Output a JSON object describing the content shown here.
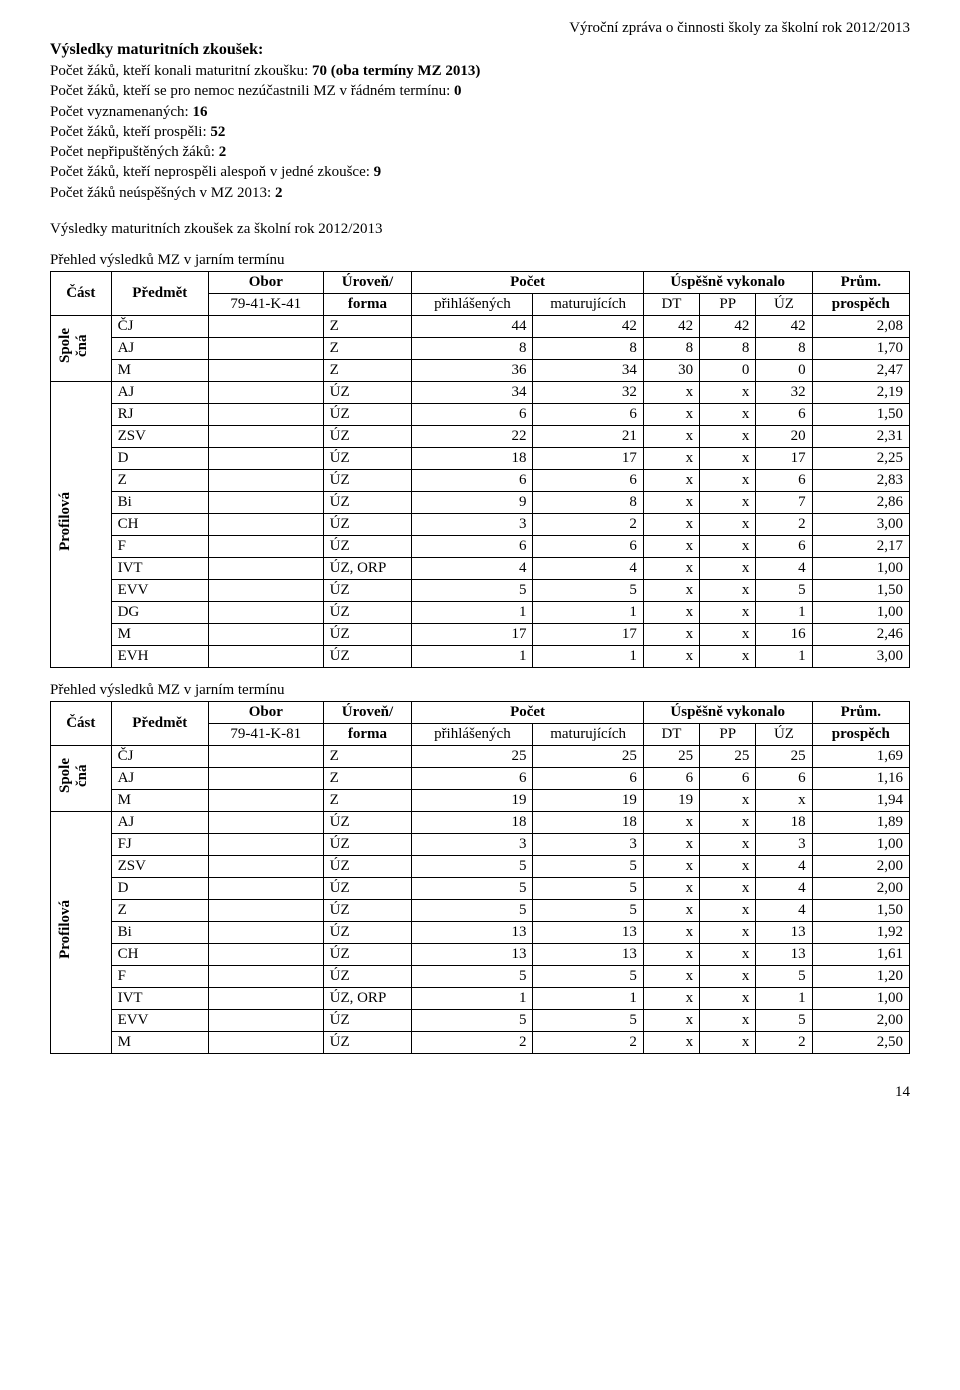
{
  "header_right": "Výroční zpráva o činnosti školy za školní rok 2012/2013",
  "section_title": "Výsledky maturitních zkoušek:",
  "stats": [
    {
      "label": "Počet žáků, kteří konali maturitní zkoušku: ",
      "value": "70 (oba termíny MZ 2013)"
    },
    {
      "label": "Počet žáků, kteří se pro nemoc nezúčastnili MZ v řádném termínu: ",
      "value": "0"
    },
    {
      "label": "Počet vyznamenaných: ",
      "value": "16"
    },
    {
      "label": "Počet žáků, kteří prospěli: ",
      "value": "52"
    },
    {
      "label": "Počet nepřipuštěných žáků: ",
      "value": "2"
    },
    {
      "label": "Počet žáků, kteří neprospěli alespoň v jedné zkoušce: ",
      "value": "9"
    },
    {
      "label": "Počet žáků neúspěšných v MZ 2013: ",
      "value": "2"
    }
  ],
  "sub_title": "Výsledky maturitních zkoušek za školní rok 2012/2013",
  "headers": {
    "cast": "Část",
    "predmet": "Předmět",
    "obor": "Obor",
    "forma": "Úroveň/\nforma",
    "pocet": "Počet",
    "prihlasenych": "přihlášených",
    "maturujicich": "maturujících",
    "uspesne": "Úspěšně vykonalo",
    "dt": "DT",
    "pp": "PP",
    "uz": "ÚZ",
    "prum": "Prům.",
    "prospech": "prospěch"
  },
  "table1": {
    "caption": "Přehled výsledků MZ v jarním termínu",
    "obor": "79-41-K-41",
    "groups": [
      {
        "label": "Spole\nčná",
        "rows": [
          {
            "pred": "ČJ",
            "forma": "Z",
            "prih": "44",
            "mat": "42",
            "dt": "42",
            "pp": "42",
            "uz": "42",
            "pr": "2,08"
          },
          {
            "pred": "AJ",
            "forma": "Z",
            "prih": "8",
            "mat": "8",
            "dt": "8",
            "pp": "8",
            "uz": "8",
            "pr": "1,70"
          },
          {
            "pred": "M",
            "forma": "Z",
            "prih": "36",
            "mat": "34",
            "dt": "30",
            "pp": "0",
            "uz": "0",
            "pr": "2,47"
          }
        ]
      },
      {
        "label": "Profilová",
        "rows": [
          {
            "pred": "AJ",
            "forma": "ÚZ",
            "prih": "34",
            "mat": "32",
            "dt": "x",
            "pp": "x",
            "uz": "32",
            "pr": "2,19"
          },
          {
            "pred": "RJ",
            "forma": "ÚZ",
            "prih": "6",
            "mat": "6",
            "dt": "x",
            "pp": "x",
            "uz": "6",
            "pr": "1,50"
          },
          {
            "pred": "ZSV",
            "forma": "ÚZ",
            "prih": "22",
            "mat": "21",
            "dt": "x",
            "pp": "x",
            "uz": "20",
            "pr": "2,31"
          },
          {
            "pred": "D",
            "forma": "ÚZ",
            "prih": "18",
            "mat": "17",
            "dt": "x",
            "pp": "x",
            "uz": "17",
            "pr": "2,25"
          },
          {
            "pred": "Z",
            "forma": "ÚZ",
            "prih": "6",
            "mat": "6",
            "dt": "x",
            "pp": "x",
            "uz": "6",
            "pr": "2,83"
          },
          {
            "pred": "Bi",
            "forma": "ÚZ",
            "prih": "9",
            "mat": "8",
            "dt": "x",
            "pp": "x",
            "uz": "7",
            "pr": "2,86"
          },
          {
            "pred": "CH",
            "forma": "ÚZ",
            "prih": "3",
            "mat": "2",
            "dt": "x",
            "pp": "x",
            "uz": "2",
            "pr": "3,00"
          },
          {
            "pred": "F",
            "forma": "ÚZ",
            "prih": "6",
            "mat": "6",
            "dt": "x",
            "pp": "x",
            "uz": "6",
            "pr": "2,17"
          },
          {
            "pred": "IVT",
            "forma": "ÚZ, ORP",
            "prih": "4",
            "mat": "4",
            "dt": "x",
            "pp": "x",
            "uz": "4",
            "pr": "1,00"
          },
          {
            "pred": "EVV",
            "forma": "ÚZ",
            "prih": "5",
            "mat": "5",
            "dt": "x",
            "pp": "x",
            "uz": "5",
            "pr": "1,50"
          },
          {
            "pred": "DG",
            "forma": "ÚZ",
            "prih": "1",
            "mat": "1",
            "dt": "x",
            "pp": "x",
            "uz": "1",
            "pr": "1,00"
          },
          {
            "pred": "M",
            "forma": "ÚZ",
            "prih": "17",
            "mat": "17",
            "dt": "x",
            "pp": "x",
            "uz": "16",
            "pr": "2,46"
          },
          {
            "pred": "EVH",
            "forma": "ÚZ",
            "prih": "1",
            "mat": "1",
            "dt": "x",
            "pp": "x",
            "uz": "1",
            "pr": "3,00"
          }
        ]
      }
    ]
  },
  "table2": {
    "caption": "Přehled výsledků MZ v jarním termínu",
    "obor": "79-41-K-81",
    "groups": [
      {
        "label": "Spole\nčná",
        "rows": [
          {
            "pred": "ČJ",
            "forma": "Z",
            "prih": "25",
            "mat": "25",
            "dt": "25",
            "pp": "25",
            "uz": "25",
            "pr": "1,69"
          },
          {
            "pred": "AJ",
            "forma": "Z",
            "prih": "6",
            "mat": "6",
            "dt": "6",
            "pp": "6",
            "uz": "6",
            "pr": "1,16"
          },
          {
            "pred": "M",
            "forma": "Z",
            "prih": "19",
            "mat": "19",
            "dt": "19",
            "pp": "x",
            "uz": "x",
            "pr": "1,94"
          }
        ]
      },
      {
        "label": "Profilová",
        "rows": [
          {
            "pred": "AJ",
            "forma": "ÚZ",
            "prih": "18",
            "mat": "18",
            "dt": "x",
            "pp": "x",
            "uz": "18",
            "pr": "1,89"
          },
          {
            "pred": "FJ",
            "forma": "ÚZ",
            "prih": "3",
            "mat": "3",
            "dt": "x",
            "pp": "x",
            "uz": "3",
            "pr": "1,00"
          },
          {
            "pred": "ZSV",
            "forma": "ÚZ",
            "prih": "5",
            "mat": "5",
            "dt": "x",
            "pp": "x",
            "uz": "4",
            "pr": "2,00"
          },
          {
            "pred": "D",
            "forma": "ÚZ",
            "prih": "5",
            "mat": "5",
            "dt": "x",
            "pp": "x",
            "uz": "4",
            "pr": "2,00"
          },
          {
            "pred": "Z",
            "forma": "ÚZ",
            "prih": "5",
            "mat": "5",
            "dt": "x",
            "pp": "x",
            "uz": "4",
            "pr": "1,50"
          },
          {
            "pred": "Bi",
            "forma": "ÚZ",
            "prih": "13",
            "mat": "13",
            "dt": "x",
            "pp": "x",
            "uz": "13",
            "pr": "1,92"
          },
          {
            "pred": "CH",
            "forma": "ÚZ",
            "prih": "13",
            "mat": "13",
            "dt": "x",
            "pp": "x",
            "uz": "13",
            "pr": "1,61"
          },
          {
            "pred": "F",
            "forma": "ÚZ",
            "prih": "5",
            "mat": "5",
            "dt": "x",
            "pp": "x",
            "uz": "5",
            "pr": "1,20"
          },
          {
            "pred": "IVT",
            "forma": "ÚZ, ORP",
            "prih": "1",
            "mat": "1",
            "dt": "x",
            "pp": "x",
            "uz": "1",
            "pr": "1,00"
          },
          {
            "pred": "EVV",
            "forma": "ÚZ",
            "prih": "5",
            "mat": "5",
            "dt": "x",
            "pp": "x",
            "uz": "5",
            "pr": "2,00"
          },
          {
            "pred": "M",
            "forma": "ÚZ",
            "prih": "2",
            "mat": "2",
            "dt": "x",
            "pp": "x",
            "uz": "2",
            "pr": "2,50"
          }
        ]
      }
    ]
  },
  "page_number": "14"
}
